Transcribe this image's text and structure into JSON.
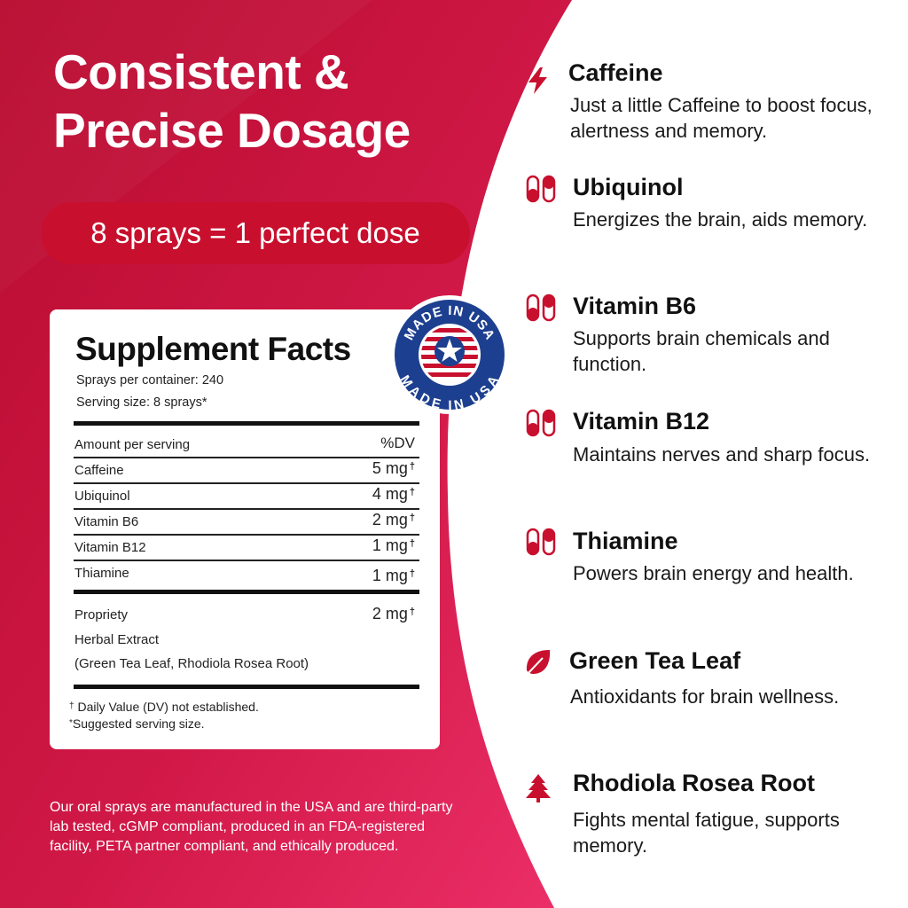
{
  "headline": "Consistent & Precise Dosage",
  "dose_pill": "8 sprays = 1 perfect dose",
  "badge": {
    "text_top": "MADE IN USA",
    "text_bottom": "MADE IN USA"
  },
  "facts": {
    "title": "Supplement Facts",
    "sprays_per_container": "Sprays per container: 240",
    "serving_size": "Serving size: 8 sprays*",
    "header_left": "Amount per serving",
    "header_right": "%DV",
    "dagger": "†",
    "rows": [
      {
        "name": "Caffeine",
        "value": "5 mg"
      },
      {
        "name": "Ubiquinol",
        "value": "4 mg"
      },
      {
        "name": "Vitamin B6",
        "value": "2 mg"
      },
      {
        "name": "Vitamin B12",
        "value": "1 mg"
      },
      {
        "name": "Thiamine",
        "value": "1 mg"
      }
    ],
    "blend": {
      "line1": "Propriety",
      "line2": "Herbal Extract",
      "line3": "(Green Tea Leaf, Rhodiola Rosea Root)",
      "value": "2 mg"
    },
    "footnote_dv": "Daily Value (DV) not established.",
    "footnote_dv_mark": "†",
    "footnote_serving": "Suggested serving size.",
    "footnote_serving_mark": "*"
  },
  "disclaimer": "Our oral sprays are manufactured in the USA and are third-party lab tested, cGMP compliant, produced in an FDA-registered facility, PETA partner compliant, and ethically produced.",
  "ingredients": [
    {
      "name": "Caffeine",
      "desc": "Just a little Caffeine to boost focus, alertness and memory.",
      "icon": "lightning-icon"
    },
    {
      "name": "Ubiquinol",
      "desc": "Energizes the brain, aids memory.",
      "icon": "capsule-icon"
    },
    {
      "name": "Vitamin B6",
      "desc": "Supports brain chemicals and function.",
      "icon": "capsule-icon"
    },
    {
      "name": "Vitamin B12",
      "desc": "Maintains nerves and sharp focus.",
      "icon": "capsule-icon"
    },
    {
      "name": "Thiamine",
      "desc": "Powers brain energy and health.",
      "icon": "capsule-icon"
    },
    {
      "name": "Green Tea Leaf",
      "desc": "Antioxidants for brain wellness.",
      "icon": "leaf-icon"
    },
    {
      "name": "Rhodiola  Rosea Root",
      "desc": "Fights mental fatigue, supports memory.",
      "icon": "tree-icon"
    }
  ],
  "colors": {
    "accent": "#c8102e",
    "gradient_dark": "#b00a2c",
    "gradient_light": "#e8245a",
    "badge_navy": "#1d3f8f"
  }
}
